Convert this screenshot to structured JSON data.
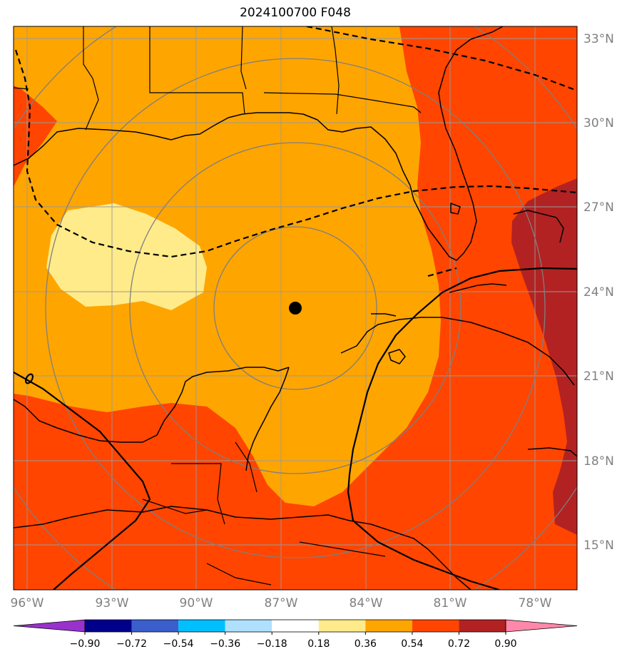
{
  "title": "2024100700 F048",
  "lon_labels": [
    "96°W",
    "93°W",
    "90°W",
    "87°W",
    "84°W",
    "81°W",
    "78°W"
  ],
  "lat_labels": [
    "33°N",
    "30°N",
    "27°N",
    "24°N",
    "21°N",
    "18°N",
    "15°N"
  ],
  "colorbar": {
    "ticks": [
      "−0.90",
      "−0.72",
      "−0.54",
      "−0.36",
      "−0.18",
      "0.18",
      "0.36",
      "0.54",
      "0.72",
      "0.90"
    ],
    "colors": [
      "#9932cc",
      "#00008b",
      "#3a5fcd",
      "#00bfff",
      "#b0e0ff",
      "#ffffff",
      "#ffeb8a",
      "#ffa500",
      "#ff4500",
      "#b22222",
      "#ff88aa"
    ]
  },
  "field_colors": {
    "yellow": "#ffeb8a",
    "orange": "#ffa500",
    "red_orange": "#ff4500",
    "dark_red": "#b22222"
  },
  "center_marker": "storm-center"
}
